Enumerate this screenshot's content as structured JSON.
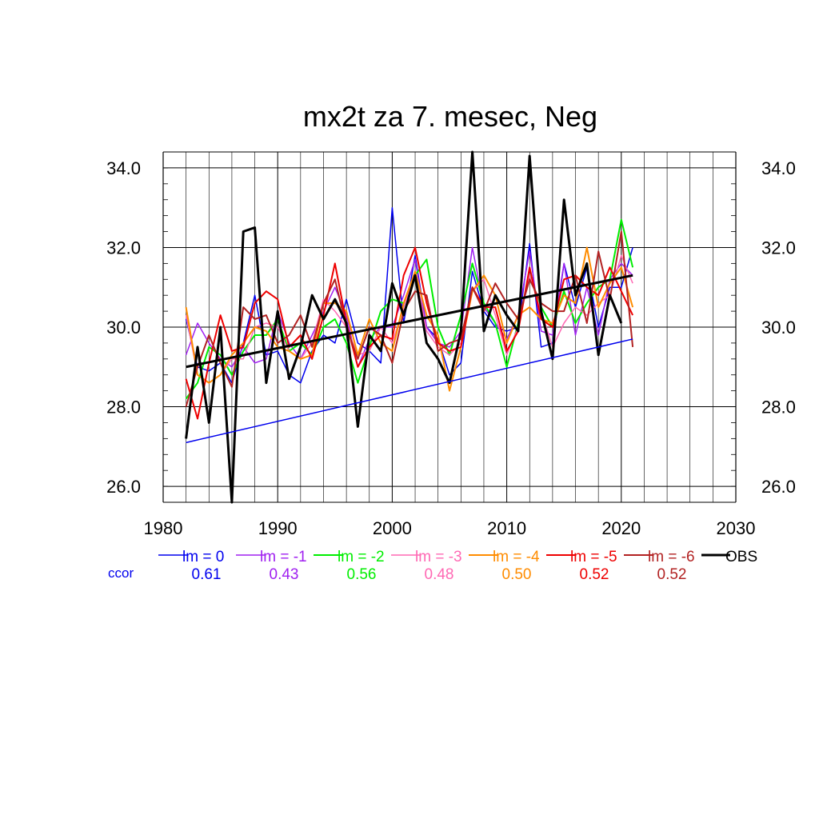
{
  "chart_data": {
    "type": "line",
    "title": "mx2t za 7. mesec, Neg",
    "xlabel": "",
    "ylabel": "",
    "xlim": [
      1980,
      2030
    ],
    "ylim": [
      25.6,
      34.4
    ],
    "x_ticks": [
      1980,
      1990,
      2000,
      2010,
      2020,
      2030
    ],
    "x_tick_labels": [
      "1980",
      "1990",
      "2000",
      "2010",
      "2020",
      "2030"
    ],
    "y_ticks": [
      26,
      28,
      30,
      32,
      34
    ],
    "y_tick_labels": [
      "26.0",
      "28.0",
      "30.0",
      "32.0",
      "34.0"
    ],
    "grid": true,
    "right_axis_labels": true,
    "x": [
      1982,
      1983,
      1984,
      1985,
      1986,
      1987,
      1988,
      1989,
      1990,
      1991,
      1992,
      1993,
      1994,
      1995,
      1996,
      1997,
      1998,
      1999,
      2000,
      2001,
      2002,
      2003,
      2004,
      2005,
      2006,
      2007,
      2008,
      2009,
      2010,
      2011,
      2012,
      2013,
      2014,
      2015,
      2016,
      2017,
      2018,
      2019,
      2020,
      2021
    ],
    "series": [
      {
        "name": "lm = 0",
        "color": "#0000ee",
        "width": 1.5,
        "values": [
          30.2,
          29.0,
          28.9,
          29.1,
          28.6,
          29.6,
          30.8,
          29.3,
          29.4,
          28.8,
          28.6,
          29.4,
          29.8,
          29.6,
          30.7,
          29.6,
          29.4,
          29.1,
          33.0,
          30.1,
          31.8,
          30.0,
          29.7,
          28.8,
          29.1,
          31.4,
          30.4,
          30.0,
          29.9,
          30.0,
          32.1,
          29.5,
          29.6,
          31.6,
          30.5,
          31.5,
          30.0,
          31.0,
          31.0,
          32.0
        ]
      },
      {
        "name": "lm = -1",
        "color": "#a020f0",
        "width": 1.5,
        "values": [
          29.3,
          30.1,
          29.6,
          29.2,
          29.0,
          29.5,
          29.1,
          29.2,
          30.4,
          29.6,
          29.2,
          29.8,
          30.4,
          31.0,
          30.3,
          29.0,
          29.7,
          30.0,
          30.0,
          30.8,
          31.7,
          30.0,
          29.6,
          29.5,
          29.9,
          32.0,
          30.5,
          30.1,
          29.7,
          30.3,
          31.9,
          29.9,
          29.8,
          31.6,
          29.8,
          31.0,
          29.8,
          31.2,
          31.6,
          31.3
        ]
      },
      {
        "name": "lm = -2",
        "color": "#00ee00",
        "width": 2,
        "values": [
          28.2,
          28.6,
          29.5,
          29.3,
          28.8,
          29.4,
          29.8,
          29.8,
          30.2,
          29.4,
          29.6,
          29.3,
          30.0,
          30.2,
          29.6,
          28.6,
          29.5,
          30.4,
          30.7,
          30.6,
          31.3,
          31.7,
          30.0,
          29.3,
          30.3,
          31.6,
          30.6,
          30.1,
          29.0,
          30.1,
          31.3,
          30.5,
          30.0,
          30.9,
          30.1,
          30.6,
          31.0,
          31.2,
          32.7,
          31.5
        ]
      },
      {
        "name": "lm = -3",
        "color": "#ff69b4",
        "width": 1.5,
        "values": [
          30.3,
          28.8,
          28.6,
          28.8,
          29.2,
          29.2,
          30.0,
          30.1,
          30.0,
          29.4,
          29.2,
          29.6,
          30.7,
          30.4,
          30.0,
          29.3,
          29.4,
          30.0,
          29.6,
          30.5,
          31.4,
          29.9,
          29.5,
          29.3,
          29.6,
          30.9,
          31.2,
          30.3,
          29.3,
          30.0,
          31.3,
          30.4,
          29.5,
          30.1,
          30.5,
          30.3,
          30.6,
          30.8,
          31.8,
          31.1
        ]
      },
      {
        "name": "lm = -4",
        "color": "#ff8c00",
        "width": 2,
        "values": [
          30.5,
          28.8,
          28.6,
          28.8,
          29.3,
          29.6,
          30.0,
          29.9,
          29.5,
          29.4,
          29.2,
          29.3,
          30.6,
          30.6,
          30.4,
          29.3,
          30.2,
          29.6,
          29.4,
          30.6,
          31.4,
          30.3,
          29.8,
          28.4,
          29.5,
          30.9,
          31.3,
          30.8,
          29.6,
          30.3,
          30.5,
          30.2,
          30.1,
          30.8,
          30.6,
          32.0,
          30.5,
          31.1,
          31.5,
          30.5
        ]
      },
      {
        "name": "lm = -5",
        "color": "#ee0000",
        "width": 2,
        "values": [
          28.7,
          27.7,
          29.1,
          30.3,
          29.4,
          29.5,
          30.6,
          30.9,
          30.7,
          29.5,
          29.8,
          29.2,
          30.3,
          31.6,
          30.1,
          29.0,
          29.5,
          29.8,
          29.7,
          31.3,
          32.0,
          30.6,
          29.6,
          29.4,
          29.5,
          31.0,
          30.5,
          30.5,
          29.4,
          29.9,
          31.5,
          30.2,
          30.0,
          31.2,
          31.3,
          31.0,
          30.8,
          31.5,
          30.9,
          30.3
        ]
      },
      {
        "name": "lm = -6",
        "color": "#b22222",
        "width": 2,
        "values": [
          28.0,
          29.0,
          29.8,
          29.1,
          28.5,
          30.5,
          30.2,
          30.3,
          29.6,
          29.8,
          30.3,
          29.5,
          30.6,
          31.2,
          30.0,
          29.2,
          30.0,
          29.8,
          29.1,
          30.4,
          30.9,
          30.8,
          29.4,
          29.6,
          29.7,
          31.0,
          30.4,
          31.1,
          30.6,
          30.2,
          31.2,
          30.6,
          30.4,
          30.4,
          31.3,
          30.1,
          31.9,
          30.7,
          32.4,
          29.5
        ]
      },
      {
        "name": "OBS",
        "color": "#000000",
        "width": 3,
        "values": [
          27.2,
          29.5,
          27.6,
          30.0,
          25.6,
          32.4,
          32.5,
          28.6,
          30.4,
          28.7,
          29.5,
          30.8,
          30.2,
          30.7,
          30.1,
          27.5,
          29.8,
          29.4,
          31.1,
          30.3,
          31.3,
          29.6,
          29.2,
          28.6,
          29.9,
          34.4,
          29.9,
          30.8,
          30.3,
          29.9,
          34.3,
          30.4,
          29.2,
          33.2,
          30.8,
          31.6,
          29.3,
          30.8,
          30.1,
          null
        ]
      }
    ],
    "trend_lines": [
      {
        "series": "lm = 0",
        "color": "#0000ee",
        "width": 1.5,
        "x": [
          1982,
          2021
        ],
        "y": [
          27.1,
          29.7
        ]
      },
      {
        "series": "OBS",
        "color": "#000000",
        "width": 3,
        "x": [
          1982,
          2021
        ],
        "y": [
          29.0,
          31.3
        ]
      }
    ],
    "legend": {
      "placement": "bottom",
      "entries": [
        "lm = 0",
        "lm = -1",
        "lm = -2",
        "lm = -3",
        "lm = -4",
        "lm = -5",
        "lm = -6",
        "OBS"
      ],
      "ccor_label": "ccor",
      "ccor_label_color": "#0000ee",
      "ccor_values": [
        "0.61",
        "0.43",
        "0.56",
        "0.48",
        "0.50",
        "0.52",
        "0.52"
      ]
    }
  }
}
